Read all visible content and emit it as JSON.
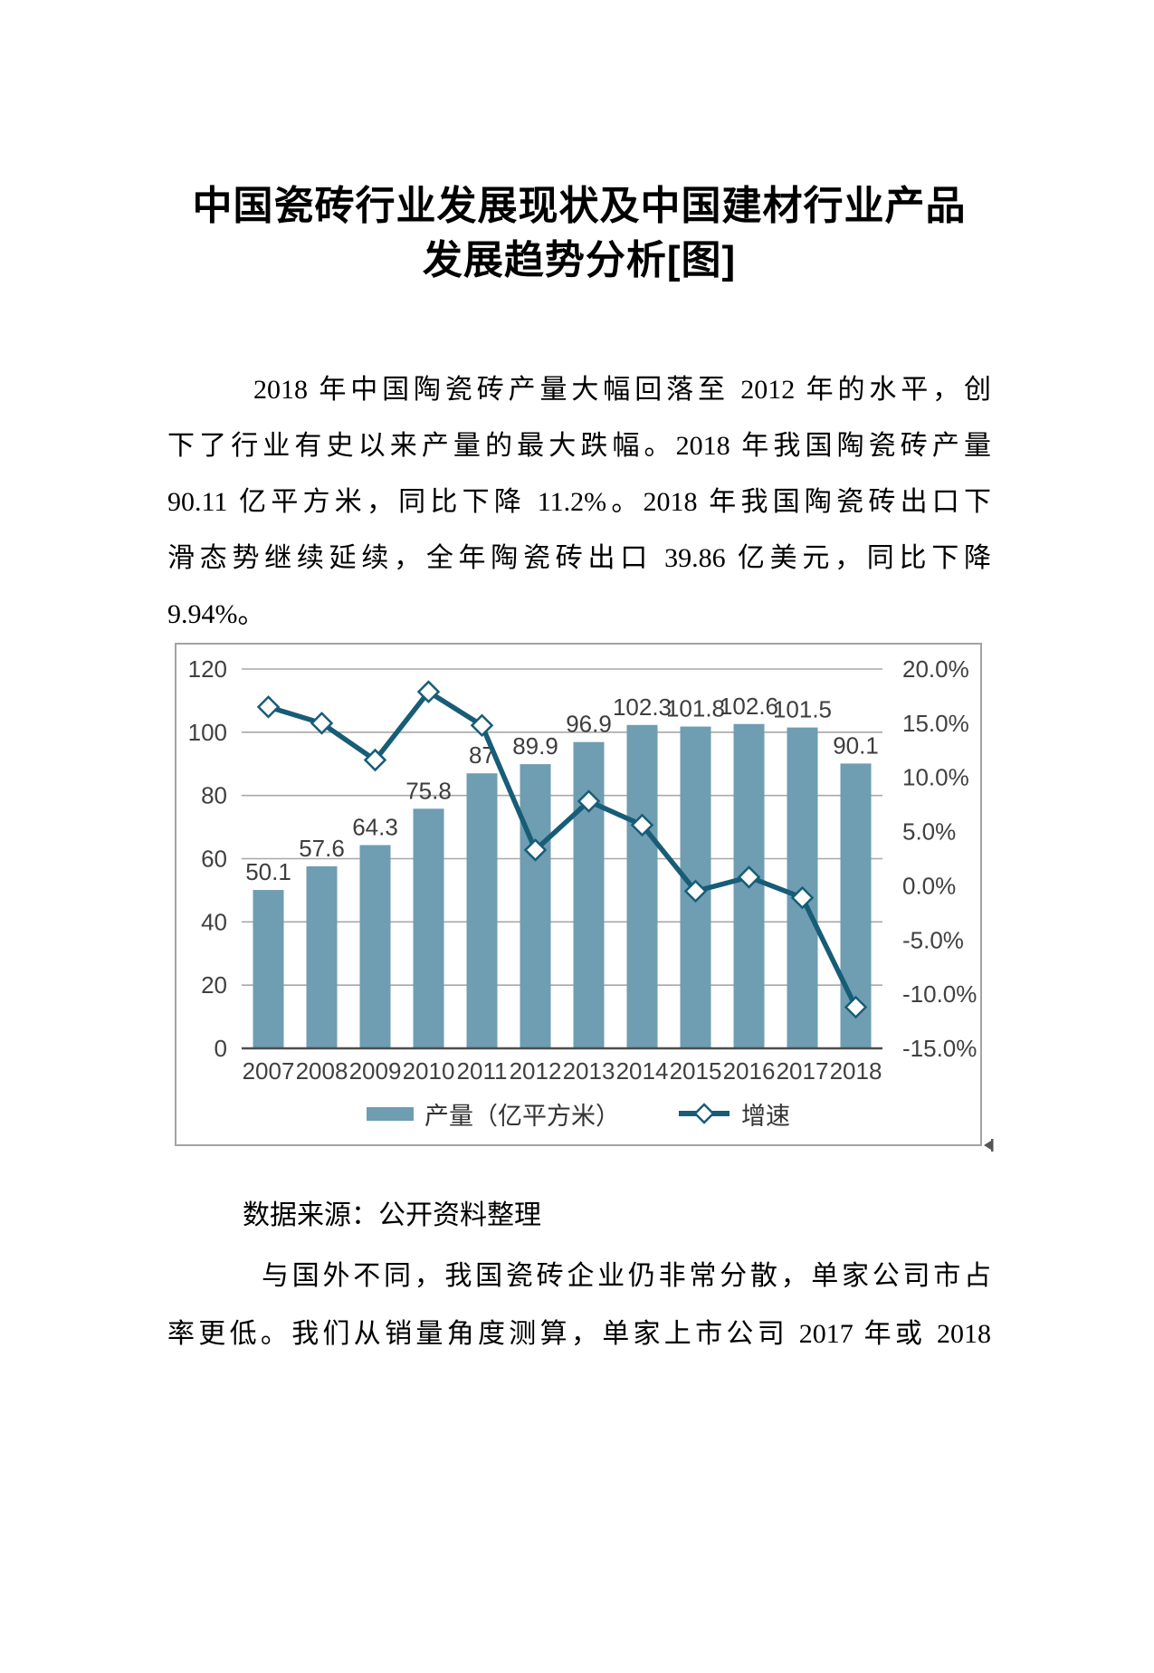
{
  "page": {
    "title_line1": "中国瓷砖行业发展现状及中国建材行业产品",
    "title_line2": "发展趋势分析[图]"
  },
  "paragraphs": {
    "p1_lines": [
      "2018 年中国陶瓷砖产量大幅回落至 2012 年的水平，创",
      "下了行业有史以来产量的最大跌幅。2018 年我国陶瓷砖产量",
      "90.11 亿平方米，同比下降 11.2%。2018 年我国陶瓷砖出口下",
      "滑态势继续延续，全年陶瓷砖出口 39.86 亿美元，同比下降",
      "9.94%。"
    ],
    "source_note": "数据来源：公开资料整理",
    "p2_lines": [
      "与国外不同，我国瓷砖企业仍非常分散，单家公司市占",
      "率更低。我们从销量角度测算，单家上市公司 2017 年或 2018"
    ]
  },
  "chart_data": {
    "type": "bar",
    "subtype": "bar-line-combo",
    "categories": [
      "2007",
      "2008",
      "2009",
      "2010",
      "2011",
      "2012",
      "2013",
      "2014",
      "2015",
      "2016",
      "2017",
      "2018"
    ],
    "series": [
      {
        "name": "产量（亿平方米）",
        "type": "bar",
        "axis": "left",
        "values": [
          50.1,
          57.6,
          64.3,
          75.8,
          87,
          89.9,
          96.9,
          102.3,
          101.8,
          102.6,
          101.5,
          90.1
        ]
      },
      {
        "name": "增速",
        "type": "line",
        "axis": "right",
        "values": [
          16.5,
          15.0,
          11.6,
          17.9,
          14.8,
          3.3,
          7.8,
          5.6,
          -0.5,
          0.8,
          -1.1,
          -11.2
        ]
      }
    ],
    "bar_labels": [
      "50.1",
      "57.6",
      "64.3",
      "75.8",
      "87",
      "89.9",
      "96.9",
      "102.3",
      "101.8",
      "102.6",
      "101.5",
      "90.1"
    ],
    "left_axis": {
      "min": 0,
      "max": 120,
      "step": 20,
      "tick_labels": [
        "0",
        "20",
        "40",
        "60",
        "80",
        "100",
        "120"
      ]
    },
    "right_axis": {
      "min": -15,
      "max": 20,
      "step": 5,
      "tick_labels": [
        "20.0%",
        "15.0%",
        "10.0%",
        "5.0%",
        "0.0%",
        "-5.0%",
        "-10.0%",
        "-15.0%"
      ]
    },
    "legend": [
      "产量（亿平方米）",
      "增速"
    ],
    "legend_position": "bottom",
    "grid": true,
    "title": "",
    "xlabel": "",
    "ylabel": "",
    "colors": {
      "bar": "#6f9db2",
      "line": "#175d77",
      "marker_fill": "#ffffff",
      "grid": "#a8a8a8",
      "baseline": "#4d4d4d",
      "axis_text": "#404040",
      "data_label": "#3d3d3d",
      "border": "#a3a3a3"
    }
  }
}
